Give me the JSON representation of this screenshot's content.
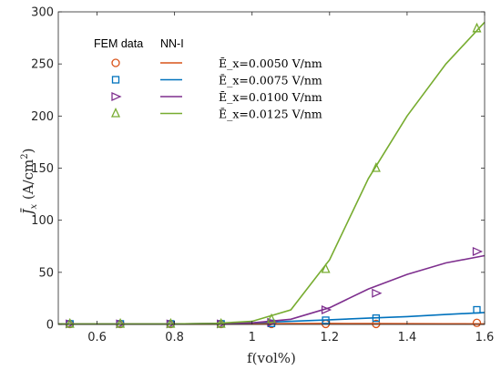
{
  "chart_data": {
    "type": "line",
    "xlabel": "f(vol%)",
    "ylabel": "J̄x (A/cm²)",
    "xlim": [
      0.5,
      1.6
    ],
    "ylim": [
      0,
      300
    ],
    "xticks": [
      "0.6",
      "0.8",
      "1",
      "1.2",
      "1.4",
      "1.6"
    ],
    "xtick_values": [
      0.6,
      0.8,
      1.0,
      1.2,
      1.4,
      1.6
    ],
    "yticks": [
      "0",
      "50",
      "100",
      "150",
      "200",
      "250",
      "300"
    ],
    "ytick_values": [
      0,
      50,
      100,
      150,
      200,
      250,
      300
    ],
    "grid": false,
    "legend": {
      "placement": "top-left",
      "col1_header": "FEM data",
      "col2_header": "NN-I"
    },
    "series": [
      {
        "name": "Ē_x=0.0050 V/nm",
        "color": "#d95319",
        "marker": "circle",
        "fem": {
          "x": [
            0.53,
            0.66,
            0.79,
            0.92,
            1.05,
            1.19,
            1.32,
            1.58
          ],
          "y": [
            0.5,
            0.5,
            0.5,
            0.5,
            0.5,
            0.5,
            0.5,
            1.5
          ]
        },
        "nn": {
          "x": [
            0.5,
            0.6,
            0.7,
            0.8,
            0.9,
            1.0,
            1.1,
            1.2,
            1.3,
            1.4,
            1.5,
            1.6
          ],
          "y": [
            0.3,
            0.3,
            0.3,
            0.3,
            0.3,
            0.5,
            0.8,
            1.0,
            0.8,
            0.7,
            0.6,
            0.5
          ]
        }
      },
      {
        "name": "Ē_x=0.0075 V/nm",
        "color": "#0072bd",
        "marker": "square",
        "fem": {
          "x": [
            0.53,
            0.66,
            0.79,
            0.92,
            1.05,
            1.19,
            1.32,
            1.58
          ],
          "y": [
            0.5,
            0.5,
            0.5,
            0.5,
            1.0,
            4.0,
            6.0,
            14.0
          ]
        },
        "nn": {
          "x": [
            0.5,
            0.6,
            0.7,
            0.8,
            0.9,
            1.0,
            1.1,
            1.2,
            1.3,
            1.4,
            1.5,
            1.6
          ],
          "y": [
            0.5,
            0.5,
            0.5,
            0.5,
            0.8,
            1.5,
            3.0,
            4.5,
            6.0,
            7.5,
            9.5,
            11.5
          ]
        }
      },
      {
        "name": "Ē_x=0.0100 V/nm",
        "color": "#7e2f8e",
        "marker": "triangle-right",
        "fem": {
          "x": [
            0.53,
            0.66,
            0.79,
            0.92,
            1.05,
            1.19,
            1.32,
            1.58
          ],
          "y": [
            0.5,
            0.5,
            0.5,
            0.5,
            2.0,
            14.0,
            30.0,
            70.0
          ]
        },
        "nn": {
          "x": [
            0.5,
            0.6,
            0.7,
            0.8,
            0.9,
            1.0,
            1.1,
            1.2,
            1.3,
            1.4,
            1.5,
            1.6
          ],
          "y": [
            0.5,
            0.5,
            0.5,
            0.5,
            1.0,
            1.5,
            5.0,
            16.0,
            34.0,
            48.0,
            59.0,
            66.0
          ]
        }
      },
      {
        "name": "Ē_x=0.0125 V/nm",
        "color": "#77ac30",
        "marker": "triangle-up",
        "fem": {
          "x": [
            0.53,
            0.66,
            0.79,
            0.92,
            1.05,
            1.19,
            1.32,
            1.58
          ],
          "y": [
            0.5,
            0.5,
            0.5,
            0.5,
            5.0,
            53.0,
            150.0,
            284.0
          ]
        },
        "nn": {
          "x": [
            0.5,
            0.6,
            0.7,
            0.8,
            0.9,
            1.0,
            1.1,
            1.2,
            1.3,
            1.4,
            1.5,
            1.6
          ],
          "y": [
            0.5,
            0.5,
            0.5,
            0.5,
            1.0,
            3.0,
            14.0,
            62.0,
            140.0,
            200.0,
            250.0,
            290.0
          ]
        }
      }
    ]
  }
}
